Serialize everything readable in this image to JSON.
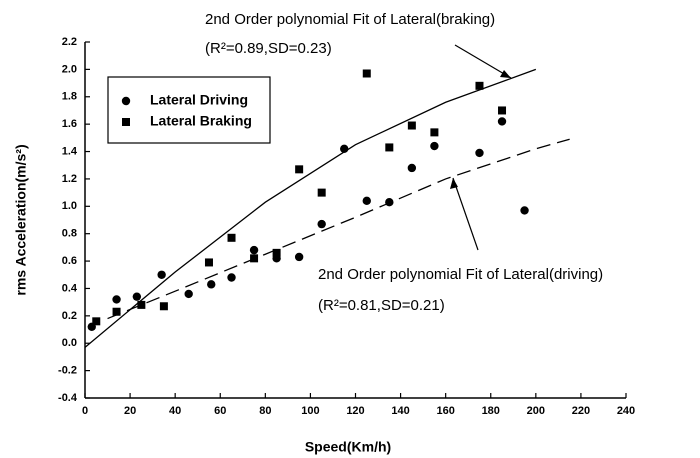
{
  "chart_data": {
    "type": "scatter",
    "xlabel": "Speed(Km/h)",
    "ylabel": "rms Acceleration(m/s²)",
    "xlim": [
      0,
      240
    ],
    "ylim": [
      -0.4,
      2.2
    ],
    "xticks": [
      0,
      20,
      40,
      60,
      80,
      100,
      120,
      140,
      160,
      180,
      200,
      220,
      240
    ],
    "yticks": [
      -0.4,
      -0.2,
      {
        "value": 0,
        "label": "0.0"
      },
      0.2,
      0.4,
      0.6,
      0.8,
      {
        "value": 1,
        "label": "1.0"
      },
      1.2,
      1.4,
      1.6,
      1.8,
      {
        "value": 2,
        "label": "2.0"
      },
      2.2
    ],
    "series": [
      {
        "name": "Lateral Driving",
        "marker": "circle",
        "color": "#000000",
        "x": [
          3,
          14,
          23,
          34,
          46,
          56,
          65,
          75,
          85,
          95,
          105,
          115,
          125,
          135,
          145,
          155,
          175,
          185,
          195
        ],
        "values": [
          0.12,
          0.32,
          0.34,
          0.5,
          0.36,
          0.43,
          0.48,
          0.68,
          0.62,
          0.63,
          0.87,
          1.42,
          1.04,
          1.03,
          1.28,
          1.44,
          1.39,
          1.62,
          0.97
        ]
      },
      {
        "name": "Lateral Braking",
        "marker": "square",
        "color": "#000000",
        "x": [
          5,
          14,
          25,
          35,
          55,
          65,
          75,
          85,
          95,
          105,
          125,
          135,
          145,
          155,
          175,
          185
        ],
        "values": [
          0.16,
          0.23,
          0.28,
          0.27,
          0.59,
          0.77,
          0.62,
          0.66,
          1.27,
          1.1,
          1.97,
          1.43,
          1.59,
          1.54,
          1.88,
          1.7
        ]
      }
    ],
    "fits": [
      {
        "dashed": false,
        "color": "#000000",
        "x": [
          0,
          40,
          80,
          120,
          160,
          200
        ],
        "values": [
          -0.03,
          0.52,
          1.03,
          1.45,
          1.76,
          2.0
        ]
      },
      {
        "dashed": true,
        "color": "#000000",
        "x": [
          10,
          40,
          80,
          120,
          160,
          200,
          215
        ],
        "values": [
          0.18,
          0.38,
          0.65,
          0.92,
          1.2,
          1.42,
          1.49
        ]
      }
    ],
    "annotations": [
      "2nd Order polynomial Fit of Lateral(braking)",
      "(R²=0.89,SD=0.23)",
      "2nd Order polynomial Fit of Lateral(driving)",
      "(R²=0.81,SD=0.21)"
    ]
  }
}
